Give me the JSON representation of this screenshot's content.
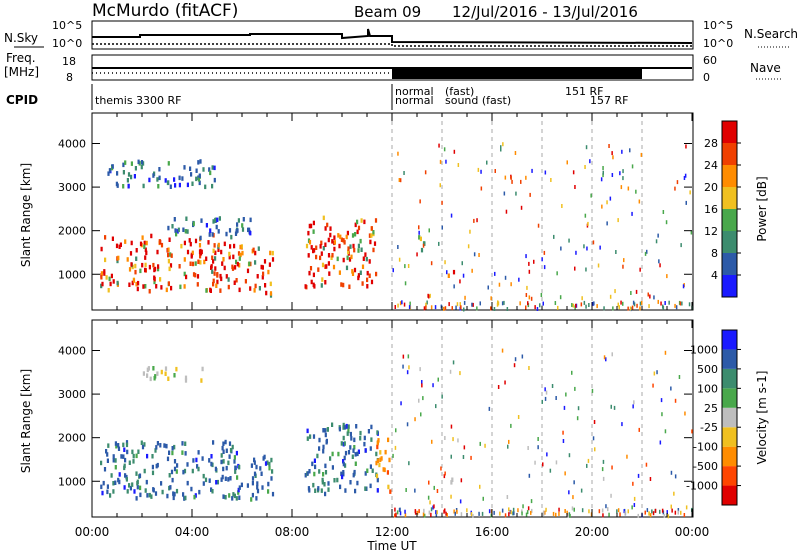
{
  "header": {
    "station": "McMurdo (fitACF)",
    "beam": "Beam 09",
    "dates": "12/Jul/2016 - 13/Jul/2016"
  },
  "noise_panel": {
    "left_label": "N.Sky",
    "right_label": "N.Search",
    "tick_top": "10^5",
    "tick_bottom": "10^0",
    "tick_top_right": "10^5",
    "tick_bottom_right": "10^0"
  },
  "freq_panel": {
    "left_label_1": "Freq.",
    "left_label_2": "[MHz]",
    "tick_top": "18",
    "tick_bottom": "8",
    "right_label": "Nave",
    "right_tick_top": "60",
    "right_tick_bottom": "0"
  },
  "cpid": {
    "label": "CPID",
    "entries": [
      {
        "text": "themis 3300 RF",
        "hour": 0.0,
        "row": 1
      },
      {
        "text": "normal",
        "hour": 12.0,
        "row": 0
      },
      {
        "text": "normal",
        "hour": 12.0,
        "row": 1
      },
      {
        "text": "sound (fast)",
        "hour": 14.0,
        "row": 1
      },
      {
        "text": "(fast)",
        "hour": 14.0,
        "row": 0
      },
      {
        "text": "151 RF",
        "hour": 18.8,
        "row": 0
      },
      {
        "text": "157 RF",
        "hour": 19.8,
        "row": 1
      }
    ]
  },
  "colors": {
    "power_scale": [
      "#1a1aff",
      "#2c5aa8",
      "#3c8c6e",
      "#49a84b",
      "#f0c020",
      "#ff8c00",
      "#f04000",
      "#e00000"
    ],
    "velocity_scale": [
      "#e00000",
      "#ff4500",
      "#ff8c00",
      "#f0c020",
      "#bebebe",
      "#49a84b",
      "#3c8c6e",
      "#2c5aa8",
      "#1a1aff"
    ]
  },
  "chart_data": [
    {
      "type": "heatmap",
      "title": "Power",
      "xlabel": "Time UT",
      "ylabel": "Slant Range [km]",
      "x_ticks": [
        "00:00",
        "04:00",
        "08:00",
        "12:00",
        "16:00",
        "20:00",
        "00:00"
      ],
      "x_range_hours": [
        0,
        24
      ],
      "y_ticks": [
        "1000",
        "2000",
        "3000",
        "4000"
      ],
      "y_range_km": [
        180,
        4700
      ],
      "colorbar_label": "Power [dB]",
      "colorbar_ticks": [
        "4",
        "8",
        "12",
        "16",
        "20",
        "24",
        "28"
      ],
      "scatter_regions": [
        {
          "t0": 0.3,
          "t1": 6.0,
          "r0": 600,
          "r1": 1900,
          "level": "high"
        },
        {
          "t0": 6.1,
          "t1": 7.2,
          "r0": 500,
          "r1": 1600,
          "level": "high"
        },
        {
          "t0": 8.5,
          "t1": 11.4,
          "r0": 700,
          "r1": 2300,
          "level": "high"
        },
        {
          "t0": 3.0,
          "t1": 6.5,
          "r0": 1800,
          "r1": 2300,
          "level": "low"
        },
        {
          "t0": 0.6,
          "t1": 5.0,
          "r0": 3000,
          "r1": 3600,
          "level": "low"
        },
        {
          "t0": 13.0,
          "t1": 13.4,
          "r0": 1500,
          "r1": 2000,
          "level": "mid"
        },
        {
          "t0": 14.1,
          "t1": 14.8,
          "r0": 950,
          "r1": 1050,
          "level": "high"
        },
        {
          "t0": 12.0,
          "t1": 24.0,
          "r0": 180,
          "r1": 4000,
          "level": "sparse"
        }
      ]
    },
    {
      "type": "heatmap",
      "title": "Velocity",
      "xlabel": "Time UT",
      "ylabel": "Slant Range [km]",
      "x_ticks": [
        "00:00",
        "04:00",
        "08:00",
        "12:00",
        "16:00",
        "20:00",
        "00:00"
      ],
      "x_range_hours": [
        0,
        24
      ],
      "y_ticks": [
        "1000",
        "2000",
        "3000",
        "4000"
      ],
      "y_range_km": [
        180,
        4700
      ],
      "colorbar_label": "Velocity [m s-1]",
      "colorbar_ticks": [
        "1000",
        "500",
        "100",
        "25",
        "-25",
        "-100",
        "-500",
        "-1000"
      ],
      "scatter_regions": [
        {
          "t0": 0.3,
          "t1": 6.0,
          "r0": 600,
          "r1": 1900,
          "level": "pos"
        },
        {
          "t0": 6.1,
          "t1": 7.2,
          "r0": 500,
          "r1": 1600,
          "level": "pos"
        },
        {
          "t0": 8.5,
          "t1": 11.4,
          "r0": 700,
          "r1": 2300,
          "level": "pos"
        },
        {
          "t0": 11.3,
          "t1": 11.9,
          "r0": 700,
          "r1": 2000,
          "level": "neg"
        },
        {
          "t0": 2.0,
          "t1": 4.5,
          "r0": 3300,
          "r1": 3600,
          "level": "zero"
        },
        {
          "t0": 14.1,
          "t1": 14.8,
          "r0": 950,
          "r1": 1050,
          "level": "zero"
        },
        {
          "t0": 12.0,
          "t1": 24.0,
          "r0": 180,
          "r1": 4000,
          "level": "sparse"
        }
      ]
    }
  ]
}
